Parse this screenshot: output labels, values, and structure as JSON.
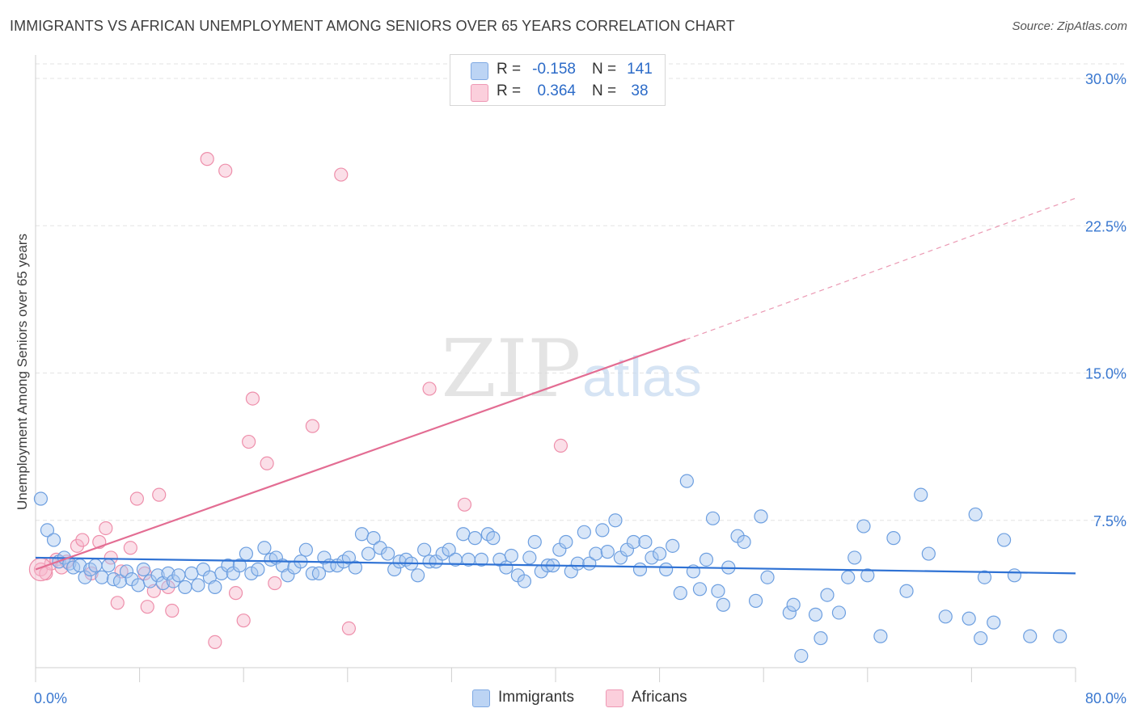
{
  "header": {
    "title": "IMMIGRANTS VS AFRICAN UNEMPLOYMENT AMONG SENIORS OVER 65 YEARS CORRELATION CHART",
    "source": "Source: ZipAtlas.com"
  },
  "watermark": {
    "zip": "ZIP",
    "atlas": "atlas"
  },
  "legend": {
    "rows": [
      {
        "r_label": "R =",
        "r_value": "-0.158",
        "n_label": "N =",
        "n_value": "141",
        "color": "#a8c8f0"
      },
      {
        "r_label": "R =",
        "r_value": "0.364",
        "n_label": "N =",
        "n_value": "38",
        "color": "#f7b8cb"
      }
    ]
  },
  "chart_data": {
    "type": "scatter",
    "title": "IMMIGRANTS VS AFRICAN UNEMPLOYMENT AMONG SENIORS OVER 65 YEARS CORRELATION CHART",
    "xlabel": "",
    "ylabel": "Unemployment Among Seniors over 65 years",
    "xlim": [
      0,
      80
    ],
    "ylim": [
      0,
      30
    ],
    "x_tick_labels": [
      "0.0%",
      "80.0%"
    ],
    "y_ticks": [
      7.5,
      15,
      22.5,
      30
    ],
    "y_tick_labels": [
      "7.5%",
      "15.0%",
      "22.5%",
      "30.0%"
    ],
    "grid": true,
    "legend_position": "bottom-center",
    "series": [
      {
        "name": "Immigrants",
        "color": "#6d9fe0",
        "fill": "#a8c8f0",
        "trend": {
          "x": [
            0,
            80
          ],
          "y": [
            5.6,
            4.8
          ],
          "color": "#2f72d4"
        },
        "points": [
          [
            0.4,
            8.6
          ],
          [
            0.9,
            7.0
          ],
          [
            1.4,
            6.5
          ],
          [
            1.8,
            5.4
          ],
          [
            2.2,
            5.6
          ],
          [
            2.6,
            5.3
          ],
          [
            2.9,
            5.1
          ],
          [
            3.4,
            5.2
          ],
          [
            3.8,
            4.6
          ],
          [
            4.2,
            5.0
          ],
          [
            4.6,
            5.2
          ],
          [
            5.1,
            4.6
          ],
          [
            5.6,
            5.2
          ],
          [
            6.0,
            4.5
          ],
          [
            6.5,
            4.4
          ],
          [
            7.0,
            4.9
          ],
          [
            7.4,
            4.5
          ],
          [
            7.9,
            4.2
          ],
          [
            8.3,
            5.0
          ],
          [
            8.8,
            4.4
          ],
          [
            9.4,
            4.7
          ],
          [
            9.8,
            4.3
          ],
          [
            10.2,
            4.8
          ],
          [
            10.6,
            4.4
          ],
          [
            11.0,
            4.7
          ],
          [
            11.5,
            4.1
          ],
          [
            12.0,
            4.8
          ],
          [
            12.5,
            4.2
          ],
          [
            12.9,
            5.0
          ],
          [
            13.4,
            4.6
          ],
          [
            13.8,
            4.1
          ],
          [
            14.3,
            4.8
          ],
          [
            14.8,
            5.2
          ],
          [
            15.2,
            4.8
          ],
          [
            15.7,
            5.2
          ],
          [
            16.2,
            5.8
          ],
          [
            16.6,
            4.8
          ],
          [
            17.1,
            5.0
          ],
          [
            17.6,
            6.1
          ],
          [
            18.1,
            5.5
          ],
          [
            18.5,
            5.6
          ],
          [
            19.0,
            5.2
          ],
          [
            19.4,
            4.7
          ],
          [
            19.9,
            5.1
          ],
          [
            20.4,
            5.4
          ],
          [
            20.8,
            6.0
          ],
          [
            21.3,
            4.8
          ],
          [
            21.8,
            4.8
          ],
          [
            22.2,
            5.6
          ],
          [
            22.6,
            5.2
          ],
          [
            23.2,
            5.2
          ],
          [
            23.7,
            5.4
          ],
          [
            24.1,
            5.6
          ],
          [
            24.6,
            5.1
          ],
          [
            25.1,
            6.8
          ],
          [
            25.6,
            5.8
          ],
          [
            26.0,
            6.6
          ],
          [
            26.5,
            6.1
          ],
          [
            27.1,
            5.8
          ],
          [
            27.6,
            5.0
          ],
          [
            28.0,
            5.4
          ],
          [
            28.5,
            5.5
          ],
          [
            28.9,
            5.3
          ],
          [
            29.4,
            4.7
          ],
          [
            29.9,
            6.0
          ],
          [
            30.3,
            5.4
          ],
          [
            30.8,
            5.4
          ],
          [
            31.3,
            5.8
          ],
          [
            31.8,
            6.0
          ],
          [
            32.3,
            5.5
          ],
          [
            32.9,
            6.8
          ],
          [
            33.3,
            5.5
          ],
          [
            33.8,
            6.6
          ],
          [
            34.3,
            5.5
          ],
          [
            34.8,
            6.8
          ],
          [
            35.2,
            6.6
          ],
          [
            35.7,
            5.5
          ],
          [
            36.2,
            5.1
          ],
          [
            36.6,
            5.7
          ],
          [
            37.1,
            4.7
          ],
          [
            37.6,
            4.4
          ],
          [
            38.0,
            5.6
          ],
          [
            38.4,
            6.4
          ],
          [
            38.9,
            4.9
          ],
          [
            39.4,
            5.2
          ],
          [
            39.8,
            5.2
          ],
          [
            40.3,
            6.0
          ],
          [
            40.8,
            6.4
          ],
          [
            41.2,
            4.9
          ],
          [
            41.7,
            5.3
          ],
          [
            42.2,
            6.9
          ],
          [
            42.6,
            5.3
          ],
          [
            43.1,
            5.8
          ],
          [
            43.6,
            7.0
          ],
          [
            44.0,
            5.9
          ],
          [
            44.6,
            7.5
          ],
          [
            45.0,
            5.6
          ],
          [
            45.5,
            6.0
          ],
          [
            46.0,
            6.4
          ],
          [
            46.5,
            5.0
          ],
          [
            46.9,
            6.4
          ],
          [
            47.4,
            5.6
          ],
          [
            48.0,
            5.8
          ],
          [
            48.5,
            5.0
          ],
          [
            49.0,
            6.2
          ],
          [
            49.6,
            3.8
          ],
          [
            50.1,
            9.5
          ],
          [
            50.6,
            4.9
          ],
          [
            51.1,
            4.0
          ],
          [
            51.6,
            5.5
          ],
          [
            52.1,
            7.6
          ],
          [
            52.5,
            3.9
          ],
          [
            52.9,
            3.2
          ],
          [
            53.3,
            5.1
          ],
          [
            54.0,
            6.7
          ],
          [
            54.5,
            6.4
          ],
          [
            55.4,
            3.4
          ],
          [
            55.8,
            7.7
          ],
          [
            56.3,
            4.6
          ],
          [
            58.0,
            2.8
          ],
          [
            58.3,
            3.2
          ],
          [
            58.9,
            0.6
          ],
          [
            60.0,
            2.7
          ],
          [
            60.4,
            1.5
          ],
          [
            60.9,
            3.7
          ],
          [
            61.8,
            2.8
          ],
          [
            62.5,
            4.6
          ],
          [
            63.0,
            5.6
          ],
          [
            63.7,
            7.2
          ],
          [
            64.0,
            4.7
          ],
          [
            65.0,
            1.6
          ],
          [
            66.0,
            6.6
          ],
          [
            67.0,
            3.9
          ],
          [
            68.1,
            8.8
          ],
          [
            68.7,
            5.8
          ],
          [
            70.0,
            2.6
          ],
          [
            71.8,
            2.5
          ],
          [
            72.3,
            7.8
          ],
          [
            72.7,
            1.5
          ],
          [
            73.0,
            4.6
          ],
          [
            73.7,
            2.3
          ],
          [
            74.5,
            6.5
          ],
          [
            75.3,
            4.7
          ],
          [
            76.5,
            1.6
          ],
          [
            78.8,
            1.6
          ]
        ]
      },
      {
        "name": "Africans",
        "color": "#ee8fab",
        "fill": "#f7b8cb",
        "trend": {
          "x": [
            0,
            50
          ],
          "y": [
            5.0,
            16.7
          ],
          "dashed_to_x": 80,
          "dashed_to_y": 23.9,
          "color": "#e36d93"
        },
        "points": [
          [
            0.4,
            5.0
          ],
          [
            0.8,
            4.8
          ],
          [
            1.2,
            5.3
          ],
          [
            1.6,
            5.5
          ],
          [
            2.0,
            5.1
          ],
          [
            2.4,
            5.4
          ],
          [
            3.2,
            6.2
          ],
          [
            3.6,
            6.5
          ],
          [
            4.3,
            4.8
          ],
          [
            4.9,
            6.4
          ],
          [
            5.4,
            7.1
          ],
          [
            5.8,
            5.6
          ],
          [
            6.3,
            3.3
          ],
          [
            6.6,
            4.9
          ],
          [
            7.3,
            6.1
          ],
          [
            7.8,
            8.6
          ],
          [
            8.4,
            4.8
          ],
          [
            8.6,
            3.1
          ],
          [
            9.1,
            3.9
          ],
          [
            9.5,
            8.8
          ],
          [
            10.2,
            4.1
          ],
          [
            10.5,
            2.9
          ],
          [
            13.2,
            25.9
          ],
          [
            13.8,
            1.3
          ],
          [
            14.6,
            25.3
          ],
          [
            15.4,
            3.8
          ],
          [
            16.0,
            2.4
          ],
          [
            16.4,
            11.5
          ],
          [
            16.7,
            13.7
          ],
          [
            17.8,
            10.4
          ],
          [
            18.4,
            4.3
          ],
          [
            21.3,
            12.3
          ],
          [
            23.5,
            25.1
          ],
          [
            24.1,
            2.0
          ],
          [
            30.3,
            14.2
          ],
          [
            33.0,
            8.3
          ],
          [
            40.4,
            11.3
          ]
        ]
      }
    ]
  },
  "bottom_legend": {
    "items": [
      {
        "label": "Immigrants",
        "color": "#a8c8f0"
      },
      {
        "label": "Africans",
        "color": "#f7b8cb"
      }
    ]
  }
}
